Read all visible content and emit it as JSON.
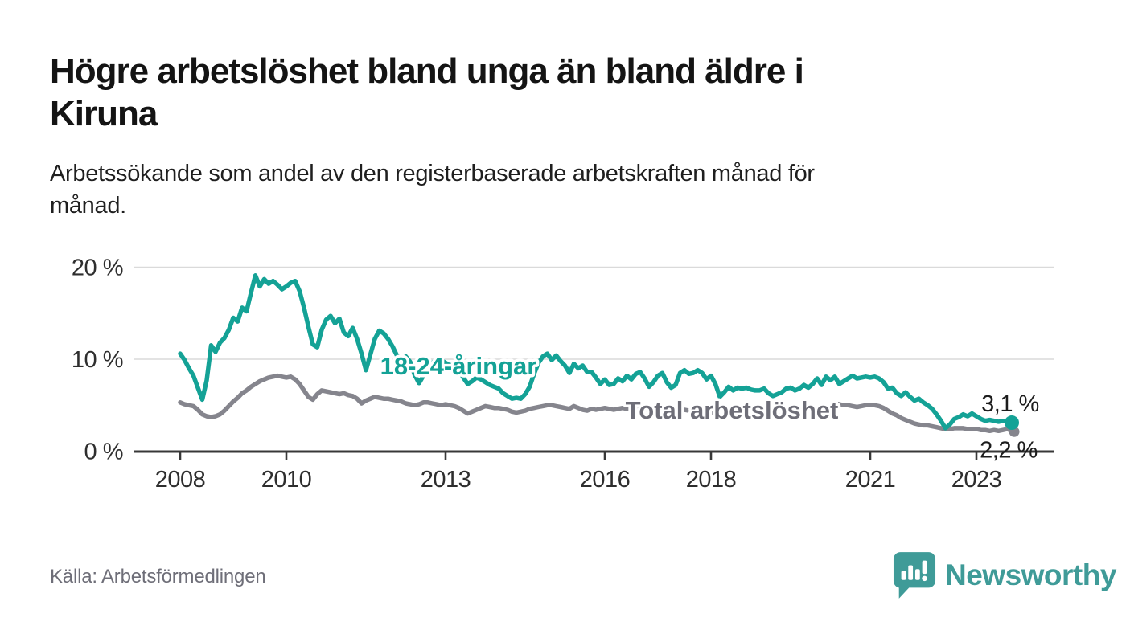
{
  "header": {
    "title_lines": [
      "Högre arbetslöshet bland unga än bland äldre i",
      "Kiruna"
    ],
    "subtitle_lines": [
      "Arbetssökande som andel av den registerbaserade arbetskraften månad för",
      "månad."
    ]
  },
  "footer": {
    "source": "Källa: Arbetsförmedlingen",
    "brand": "Newsworthy"
  },
  "colors": {
    "accent_teal": "#14a296",
    "line_gray": "#85858d",
    "label_gray": "#6e6e78",
    "grid": "#dadada",
    "axis": "#383838",
    "tick_text": "#2e2e2e",
    "annotation_text": "#1c1c1c",
    "brand_teal": "#3f9b98"
  },
  "chart_data": {
    "type": "line",
    "title": "Högre arbetslöshet bland unga än bland äldre i Kiruna",
    "subtitle": "Arbetssökande som andel av den registerbaserade arbetskraften månad för månad.",
    "xlabel": "",
    "ylabel": "",
    "unit": "%",
    "x_start_year": 2008,
    "x_end": "2023-09",
    "months_per_point": 1,
    "x_tick_years": [
      2008,
      2010,
      2013,
      2016,
      2018,
      2021,
      2023
    ],
    "y_ticks": [
      {
        "value": 0,
        "label": "0 %"
      },
      {
        "value": 10,
        "label": "10 %"
      },
      {
        "value": 20,
        "label": "20 %"
      }
    ],
    "ylim": [
      0,
      21
    ],
    "grid": "horizontal-only",
    "legend": "inline-labels",
    "series": [
      {
        "name": "18-24-åringar",
        "color": "#14a296",
        "end_label": "3,1 %",
        "end_value": 3.1,
        "values": [
          10.6,
          9.9,
          9.0,
          8.2,
          6.9,
          5.6,
          7.7,
          11.5,
          10.8,
          11.8,
          12.3,
          13.2,
          14.5,
          14.1,
          15.6,
          15.2,
          17.2,
          19.1,
          17.9,
          18.7,
          18.2,
          18.5,
          18.1,
          17.6,
          17.9,
          18.3,
          18.5,
          17.4,
          15.6,
          13.5,
          11.6,
          11.3,
          13.2,
          14.3,
          14.7,
          13.9,
          14.4,
          12.9,
          12.5,
          13.4,
          12.2,
          10.6,
          8.8,
          10.5,
          12.2,
          13.1,
          12.8,
          12.2,
          11.4,
          10.4,
          10.0,
          10.3,
          9.7,
          8.3,
          7.4,
          8.2,
          9.0,
          9.6,
          10.0,
          9.9,
          9.6,
          9.3,
          9.5,
          8.8,
          8.0,
          7.3,
          7.6,
          8.0,
          7.8,
          7.5,
          7.2,
          7.0,
          6.8,
          6.3,
          6.0,
          5.7,
          5.8,
          5.7,
          6.2,
          7.0,
          8.4,
          9.6,
          10.3,
          10.6,
          9.9,
          10.4,
          9.8,
          9.3,
          8.5,
          9.5,
          9.0,
          9.3,
          8.6,
          8.6,
          8.0,
          7.3,
          7.8,
          7.2,
          7.3,
          7.9,
          7.6,
          8.2,
          7.8,
          8.4,
          8.6,
          7.9,
          7.0,
          7.5,
          8.2,
          8.5,
          7.5,
          6.9,
          7.2,
          8.5,
          8.8,
          8.4,
          8.5,
          8.8,
          8.5,
          7.8,
          8.2,
          7.3,
          5.9,
          6.4,
          7.0,
          6.6,
          6.9,
          6.8,
          6.9,
          6.7,
          6.6,
          6.6,
          6.8,
          6.3,
          6.0,
          6.2,
          6.4,
          6.8,
          6.9,
          6.6,
          6.8,
          7.2,
          6.9,
          7.3,
          7.9,
          7.2,
          8.1,
          7.7,
          8.1,
          7.3,
          7.6,
          7.9,
          8.2,
          7.9,
          8.0,
          8.1,
          8.0,
          8.1,
          7.9,
          7.5,
          6.8,
          6.9,
          6.3,
          6.0,
          6.4,
          5.9,
          5.5,
          5.7,
          5.3,
          5.0,
          4.6,
          4.0,
          3.3,
          2.5,
          2.9,
          3.5,
          3.7,
          4.0,
          3.8,
          4.1,
          3.8,
          3.5,
          3.3,
          3.4,
          3.3,
          3.2,
          3.3,
          3.2,
          3.1
        ]
      },
      {
        "name": "Total arbetslöshet",
        "color": "#85858d",
        "end_label": "2,2 %",
        "end_value": 2.2,
        "values": [
          5.3,
          5.1,
          5.0,
          4.9,
          4.5,
          4.0,
          3.8,
          3.7,
          3.8,
          4.0,
          4.4,
          4.9,
          5.4,
          5.8,
          6.3,
          6.6,
          7.0,
          7.3,
          7.6,
          7.8,
          8.0,
          8.1,
          8.2,
          8.1,
          8.0,
          8.1,
          7.8,
          7.3,
          6.6,
          5.9,
          5.6,
          6.2,
          6.6,
          6.5,
          6.4,
          6.3,
          6.2,
          6.3,
          6.1,
          6.0,
          5.7,
          5.2,
          5.5,
          5.7,
          5.9,
          5.8,
          5.7,
          5.7,
          5.6,
          5.5,
          5.4,
          5.2,
          5.1,
          5.0,
          5.1,
          5.3,
          5.3,
          5.2,
          5.1,
          5.0,
          5.1,
          5.0,
          4.9,
          4.7,
          4.4,
          4.1,
          4.3,
          4.5,
          4.7,
          4.9,
          4.8,
          4.7,
          4.7,
          4.6,
          4.5,
          4.3,
          4.2,
          4.3,
          4.4,
          4.6,
          4.7,
          4.8,
          4.9,
          5.0,
          5.0,
          4.9,
          4.8,
          4.7,
          4.6,
          4.9,
          4.7,
          4.5,
          4.4,
          4.6,
          4.5,
          4.6,
          4.7,
          4.6,
          4.5,
          4.6,
          4.7,
          4.6,
          4.7,
          4.6,
          4.5,
          4.6,
          4.5,
          4.5,
          4.6,
          4.5,
          4.4,
          4.4,
          4.3,
          4.4,
          4.5,
          4.4,
          4.3,
          4.4,
          4.3,
          4.2,
          4.2,
          4.1,
          4.0,
          3.9,
          3.9,
          4.0,
          4.1,
          4.0,
          3.9,
          3.9,
          3.8,
          3.9,
          3.9,
          3.8,
          3.8,
          3.9,
          3.8,
          3.9,
          4.0,
          4.0,
          3.9,
          4.0,
          4.1,
          4.1,
          4.2,
          4.3,
          4.5,
          5.0,
          5.2,
          5.1,
          5.0,
          5.0,
          4.9,
          4.8,
          4.9,
          5.0,
          5.0,
          5.0,
          4.9,
          4.7,
          4.4,
          4.1,
          3.9,
          3.6,
          3.4,
          3.2,
          3.0,
          2.9,
          2.8,
          2.8,
          2.7,
          2.6,
          2.5,
          2.4,
          2.4,
          2.5,
          2.5,
          2.5,
          2.4,
          2.4,
          2.4,
          2.3,
          2.3,
          2.2,
          2.3,
          2.2,
          2.3,
          2.4,
          2.2
        ]
      }
    ]
  }
}
